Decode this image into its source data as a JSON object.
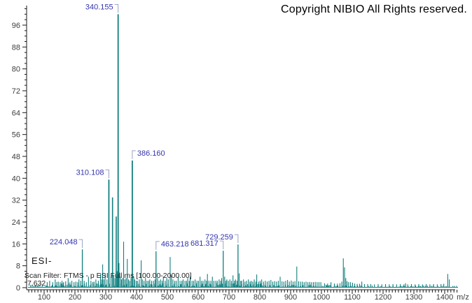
{
  "window": {
    "copyright": "Copyright NIBIO All Rights reserved."
  },
  "annotations": {
    "ionization_mode": "ESI-",
    "scan_filter": "Scan Filter: FTMS - p ESI Full ms [100.00-2000.00]",
    "retention_time": "7.632"
  },
  "chart_data": {
    "type": "bar",
    "subtype": "mass-spectrum",
    "title": "",
    "xlabel": "m/z",
    "ylabel": "",
    "xlim": [
      40,
      1460
    ],
    "ylim": [
      0,
      103
    ],
    "grid": false,
    "legend": "none",
    "x_major_ticks": [
      100,
      200,
      300,
      400,
      500,
      600,
      700,
      800,
      900,
      1000,
      1100,
      1200,
      1300,
      1400
    ],
    "x_minor_step": 10,
    "y_major_ticks": [
      0,
      8,
      16,
      24,
      32,
      40,
      48,
      56,
      64,
      72,
      80,
      88,
      96
    ],
    "y_minor_step": 2,
    "colors": {
      "peak": "#117f7f",
      "peak_label": "#3434ae",
      "bracket": "#9aa2c4",
      "axis": "#1a1a1a",
      "tick_text": "#3d3d3d"
    },
    "labeled_peaks": [
      {
        "mz": 224.048,
        "intensity": 14.0,
        "label": "224.048",
        "bracket_side": "right"
      },
      {
        "mz": 310.108,
        "intensity": 39.5,
        "label": "310.108",
        "bracket_side": "right"
      },
      {
        "mz": 340.155,
        "intensity": 100.0,
        "label": "340.155",
        "bracket_side": "right"
      },
      {
        "mz": 386.16,
        "intensity": 46.5,
        "label": "386.160",
        "bracket_side": "left"
      },
      {
        "mz": 463.218,
        "intensity": 13.3,
        "label": "463.218",
        "bracket_side": "left"
      },
      {
        "mz": 681.317,
        "intensity": 13.5,
        "label": "681.317",
        "bracket_side": "right"
      },
      {
        "mz": 729.259,
        "intensity": 15.8,
        "label": "729.259",
        "bracket_side": "right"
      }
    ],
    "peaks": [
      [
        110,
        2
      ],
      [
        118,
        2.5
      ],
      [
        128,
        2
      ],
      [
        136,
        3
      ],
      [
        141,
        2
      ],
      [
        146,
        2.2
      ],
      [
        152,
        2
      ],
      [
        158,
        2.5
      ],
      [
        163,
        2
      ],
      [
        170,
        2.3
      ],
      [
        178,
        3.5
      ],
      [
        184,
        2
      ],
      [
        190,
        2.5
      ],
      [
        197,
        2
      ],
      [
        203,
        2.2
      ],
      [
        209,
        2
      ],
      [
        213,
        3
      ],
      [
        219,
        2.5
      ],
      [
        230,
        2.5
      ],
      [
        237,
        2
      ],
      [
        244,
        4
      ],
      [
        252,
        2.5
      ],
      [
        258,
        2
      ],
      [
        262,
        2.2
      ],
      [
        268,
        3
      ],
      [
        276,
        2.5
      ],
      [
        283,
        5
      ],
      [
        287,
        3
      ],
      [
        290,
        8.5
      ],
      [
        294,
        3
      ],
      [
        298,
        5
      ],
      [
        304,
        3
      ],
      [
        317,
        4
      ],
      [
        322,
        33
      ],
      [
        326,
        4.5
      ],
      [
        330,
        3.5
      ],
      [
        334,
        26
      ],
      [
        337,
        6
      ],
      [
        343,
        9
      ],
      [
        347,
        4
      ],
      [
        351,
        3
      ],
      [
        354,
        3.5
      ],
      [
        358,
        16.8
      ],
      [
        362,
        3
      ],
      [
        366,
        3.5
      ],
      [
        370,
        10.5
      ],
      [
        374,
        3
      ],
      [
        378,
        2.5
      ],
      [
        382,
        3.5
      ],
      [
        391,
        4
      ],
      [
        394,
        3
      ],
      [
        399,
        2.5
      ],
      [
        403,
        2.5
      ],
      [
        409,
        3
      ],
      [
        415,
        10
      ],
      [
        419,
        3
      ],
      [
        424,
        2.5
      ],
      [
        429,
        3.5
      ],
      [
        434,
        2.5
      ],
      [
        439,
        2.5
      ],
      [
        443,
        3
      ],
      [
        449,
        2.5
      ],
      [
        455,
        2.5
      ],
      [
        460,
        3
      ],
      [
        468,
        3.5
      ],
      [
        473,
        2.5
      ],
      [
        478,
        3
      ],
      [
        483,
        2.5
      ],
      [
        487,
        4
      ],
      [
        493,
        2.5
      ],
      [
        498,
        3.5
      ],
      [
        503,
        3
      ],
      [
        509,
        11.2
      ],
      [
        513,
        4.5
      ],
      [
        518,
        3
      ],
      [
        524,
        2.5
      ],
      [
        529,
        2.5
      ],
      [
        535,
        4
      ],
      [
        541,
        2.5
      ],
      [
        547,
        2.5
      ],
      [
        551,
        3
      ],
      [
        557,
        2.5
      ],
      [
        562,
        2.5
      ],
      [
        566,
        3.5
      ],
      [
        571,
        2.5
      ],
      [
        574,
        4
      ],
      [
        580,
        2.5
      ],
      [
        585,
        2.5
      ],
      [
        590,
        3
      ],
      [
        596,
        2.5
      ],
      [
        601,
        2.5
      ],
      [
        606,
        4
      ],
      [
        611,
        2.5
      ],
      [
        616,
        2.5
      ],
      [
        622,
        3
      ],
      [
        627,
        2.5
      ],
      [
        630,
        5
      ],
      [
        635,
        2.5
      ],
      [
        641,
        2.5
      ],
      [
        646,
        4
      ],
      [
        651,
        2.5
      ],
      [
        657,
        2.5
      ],
      [
        662,
        2.5
      ],
      [
        668,
        3
      ],
      [
        673,
        2.5
      ],
      [
        676,
        3.5
      ],
      [
        686,
        4
      ],
      [
        690,
        2.5
      ],
      [
        693,
        3
      ],
      [
        698,
        2.5
      ],
      [
        703,
        3
      ],
      [
        708,
        2.5
      ],
      [
        713,
        4.5
      ],
      [
        718,
        2.5
      ],
      [
        721,
        3
      ],
      [
        726,
        2.5
      ],
      [
        733,
        5.2
      ],
      [
        738,
        2.5
      ],
      [
        741,
        2.5
      ],
      [
        747,
        3
      ],
      [
        752,
        2.2
      ],
      [
        757,
        2.5
      ],
      [
        763,
        3
      ],
      [
        768,
        2.2
      ],
      [
        772,
        2.5
      ],
      [
        777,
        2.2
      ],
      [
        782,
        3
      ],
      [
        787,
        2.2
      ],
      [
        790,
        4.8
      ],
      [
        796,
        2.2
      ],
      [
        801,
        2.5
      ],
      [
        806,
        3
      ],
      [
        812,
        2.2
      ],
      [
        818,
        2.5
      ],
      [
        824,
        2.2
      ],
      [
        830,
        2.5
      ],
      [
        836,
        2.8
      ],
      [
        842,
        2.2
      ],
      [
        848,
        2.4
      ],
      [
        854,
        2.2
      ],
      [
        860,
        2.5
      ],
      [
        866,
        4
      ],
      [
        872,
        2.3
      ],
      [
        878,
        2.2
      ],
      [
        884,
        2.5
      ],
      [
        890,
        2.8
      ],
      [
        896,
        2.2
      ],
      [
        902,
        2.6
      ],
      [
        908,
        2.2
      ],
      [
        914,
        2.4
      ],
      [
        920,
        7.7
      ],
      [
        926,
        2.3
      ],
      [
        932,
        2.2
      ],
      [
        938,
        2.2
      ],
      [
        944,
        2
      ],
      [
        950,
        2.2
      ],
      [
        956,
        2
      ],
      [
        962,
        2.1
      ],
      [
        968,
        2
      ],
      [
        974,
        2
      ],
      [
        980,
        2.1
      ],
      [
        986,
        2
      ],
      [
        992,
        2
      ],
      [
        998,
        2
      ],
      [
        1010,
        1.6
      ],
      [
        1020,
        1.5
      ],
      [
        1031,
        2
      ],
      [
        1042,
        1.5
      ],
      [
        1052,
        1.5
      ],
      [
        1060,
        1.6
      ],
      [
        1066,
        2.2
      ],
      [
        1071,
        10.7
      ],
      [
        1075,
        7.4
      ],
      [
        1079,
        3.5
      ],
      [
        1083,
        2.4
      ],
      [
        1088,
        2
      ],
      [
        1094,
        2
      ],
      [
        1101,
        1.8
      ],
      [
        1108,
        1.5
      ],
      [
        1116,
        1.4
      ],
      [
        1124,
        1.4
      ],
      [
        1131,
        2.2
      ],
      [
        1140,
        1.3
      ],
      [
        1150,
        1.3
      ],
      [
        1160,
        1.3
      ],
      [
        1172,
        1.2
      ],
      [
        1184,
        1.3
      ],
      [
        1196,
        1.2
      ],
      [
        1208,
        1.3
      ],
      [
        1220,
        1.2
      ],
      [
        1232,
        1.3
      ],
      [
        1244,
        1.2
      ],
      [
        1256,
        1.3
      ],
      [
        1268,
        1.2
      ],
      [
        1273,
        1.6
      ],
      [
        1280,
        1.2
      ],
      [
        1292,
        1.3
      ],
      [
        1304,
        1.2
      ],
      [
        1316,
        1.3
      ],
      [
        1328,
        1.2
      ],
      [
        1340,
        1.3
      ],
      [
        1352,
        1.2
      ],
      [
        1364,
        1.3
      ],
      [
        1376,
        1.2
      ],
      [
        1388,
        1.3
      ],
      [
        1397,
        1.4
      ],
      [
        1410,
        5
      ],
      [
        1415,
        3
      ]
    ],
    "baseline_noise": {
      "intensity_range": [
        0.15,
        1.1
      ],
      "mz_range": [
        56,
        1442
      ],
      "mz_step": 3.5
    }
  }
}
